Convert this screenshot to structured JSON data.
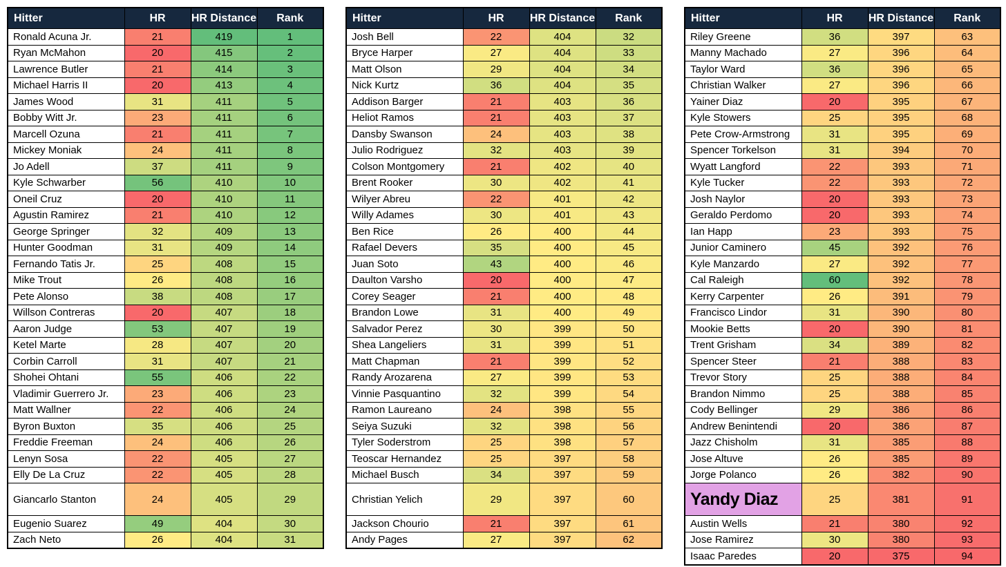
{
  "theme": {
    "page_bg": "#FFFFFF",
    "header_bg": "#16283E",
    "header_text": "#FFFFFF",
    "cell_border": "#000000",
    "name_cell_bg": "#FFFFFF",
    "highlight_bg": "#E2A2E5",
    "scale_red": "#F8696B",
    "scale_yellow": "#FFEB84",
    "scale_green": "#63BE7B"
  },
  "chart_data": {
    "type": "table",
    "columns": {
      "hitter": "Hitter",
      "hr": "HR",
      "distance": "HR Distance",
      "rank": "Rank"
    },
    "row_fields": [
      "hitter",
      "hr",
      "distance",
      "rank"
    ],
    "color_scales": {
      "hr": {
        "min": 20,
        "mid": 26,
        "max": 60,
        "low_color": "red",
        "high_color": "green"
      },
      "distance": {
        "min": 375,
        "mid": 400,
        "max": 419,
        "low_color": "red",
        "high_color": "green"
      },
      "rank": {
        "min": 1,
        "mid": 47.5,
        "max": 94,
        "low_color": "green",
        "high_color": "red"
      }
    },
    "highlighted_hitter": "Yandy Diaz",
    "tall_ranks": [
      29,
      60,
      91
    ],
    "tables": [
      {
        "name": "ranks-1-31",
        "rows": [
          [
            "Ronald Acuna Jr.",
            21,
            419,
            1
          ],
          [
            "Ryan McMahon",
            20,
            415,
            2
          ],
          [
            "Lawrence Butler",
            21,
            414,
            3
          ],
          [
            "Michael Harris II",
            20,
            413,
            4
          ],
          [
            "James Wood",
            31,
            411,
            5
          ],
          [
            "Bobby Witt Jr.",
            23,
            411,
            6
          ],
          [
            "Marcell Ozuna",
            21,
            411,
            7
          ],
          [
            "Mickey Moniak",
            24,
            411,
            8
          ],
          [
            "Jo Adell",
            37,
            411,
            9
          ],
          [
            "Kyle Schwarber",
            56,
            410,
            10
          ],
          [
            "Oneil Cruz",
            20,
            410,
            11
          ],
          [
            "Agustin Ramirez",
            21,
            410,
            12
          ],
          [
            "George Springer",
            32,
            409,
            13
          ],
          [
            "Hunter Goodman",
            31,
            409,
            14
          ],
          [
            "Fernando Tatis Jr.",
            25,
            408,
            15
          ],
          [
            "Mike Trout",
            26,
            408,
            16
          ],
          [
            "Pete Alonso",
            38,
            408,
            17
          ],
          [
            "Willson Contreras",
            20,
            407,
            18
          ],
          [
            "Aaron Judge",
            53,
            407,
            19
          ],
          [
            "Ketel Marte",
            28,
            407,
            20
          ],
          [
            "Corbin Carroll",
            31,
            407,
            21
          ],
          [
            "Shohei Ohtani",
            55,
            406,
            22
          ],
          [
            "Vladimir Guerrero Jr.",
            23,
            406,
            23
          ],
          [
            "Matt Wallner",
            22,
            406,
            24
          ],
          [
            "Byron Buxton",
            35,
            406,
            25
          ],
          [
            "Freddie Freeman",
            24,
            406,
            26
          ],
          [
            "Lenyn Sosa",
            22,
            405,
            27
          ],
          [
            "Elly De La Cruz",
            22,
            405,
            28
          ],
          [
            "Giancarlo Stanton",
            24,
            405,
            29
          ],
          [
            "Eugenio Suarez",
            49,
            404,
            30
          ],
          [
            "Zach Neto",
            26,
            404,
            31
          ]
        ]
      },
      {
        "name": "ranks-32-62",
        "rows": [
          [
            "Josh Bell",
            22,
            404,
            32
          ],
          [
            "Bryce Harper",
            27,
            404,
            33
          ],
          [
            "Matt Olson",
            29,
            404,
            34
          ],
          [
            "Nick Kurtz",
            36,
            404,
            35
          ],
          [
            "Addison Barger",
            21,
            403,
            36
          ],
          [
            "Heliot Ramos",
            21,
            403,
            37
          ],
          [
            "Dansby Swanson",
            24,
            403,
            38
          ],
          [
            "Julio Rodriguez",
            32,
            403,
            39
          ],
          [
            "Colson Montgomery",
            21,
            402,
            40
          ],
          [
            "Brent Rooker",
            30,
            402,
            41
          ],
          [
            "Wilyer Abreu",
            22,
            401,
            42
          ],
          [
            "Willy Adames",
            30,
            401,
            43
          ],
          [
            "Ben Rice",
            26,
            400,
            44
          ],
          [
            "Rafael Devers",
            35,
            400,
            45
          ],
          [
            "Juan Soto",
            43,
            400,
            46
          ],
          [
            "Daulton Varsho",
            20,
            400,
            47
          ],
          [
            "Corey Seager",
            21,
            400,
            48
          ],
          [
            "Brandon Lowe",
            31,
            400,
            49
          ],
          [
            "Salvador Perez",
            30,
            399,
            50
          ],
          [
            "Shea Langeliers",
            31,
            399,
            51
          ],
          [
            "Matt Chapman",
            21,
            399,
            52
          ],
          [
            "Randy Arozarena",
            27,
            399,
            53
          ],
          [
            "Vinnie Pasquantino",
            32,
            399,
            54
          ],
          [
            "Ramon Laureano",
            24,
            398,
            55
          ],
          [
            "Seiya Suzuki",
            32,
            398,
            56
          ],
          [
            "Tyler Soderstrom",
            25,
            398,
            57
          ],
          [
            "Teoscar Hernandez",
            25,
            397,
            58
          ],
          [
            "Michael Busch",
            34,
            397,
            59
          ],
          [
            "Christian Yelich",
            29,
            397,
            60
          ],
          [
            "Jackson Chourio",
            21,
            397,
            61
          ],
          [
            "Andy Pages",
            27,
            397,
            62
          ]
        ]
      },
      {
        "name": "ranks-63-94",
        "rows": [
          [
            "Riley Greene",
            36,
            397,
            63
          ],
          [
            "Manny Machado",
            27,
            396,
            64
          ],
          [
            "Taylor Ward",
            36,
            396,
            65
          ],
          [
            "Christian Walker",
            27,
            396,
            66
          ],
          [
            "Yainer Diaz",
            20,
            395,
            67
          ],
          [
            "Kyle Stowers",
            25,
            395,
            68
          ],
          [
            "Pete Crow-Armstrong",
            31,
            395,
            69
          ],
          [
            "Spencer Torkelson",
            31,
            394,
            70
          ],
          [
            "Wyatt Langford",
            22,
            393,
            71
          ],
          [
            "Kyle Tucker",
            22,
            393,
            72
          ],
          [
            "Josh Naylor",
            20,
            393,
            73
          ],
          [
            "Geraldo Perdomo",
            20,
            393,
            74
          ],
          [
            "Ian Happ",
            23,
            393,
            75
          ],
          [
            "Junior Caminero",
            45,
            392,
            76
          ],
          [
            "Kyle Manzardo",
            27,
            392,
            77
          ],
          [
            "Cal Raleigh",
            60,
            392,
            78
          ],
          [
            "Kerry Carpenter",
            26,
            391,
            79
          ],
          [
            "Francisco Lindor",
            31,
            390,
            80
          ],
          [
            "Mookie Betts",
            20,
            390,
            81
          ],
          [
            "Trent Grisham",
            34,
            389,
            82
          ],
          [
            "Spencer Steer",
            21,
            388,
            83
          ],
          [
            "Trevor Story",
            25,
            388,
            84
          ],
          [
            "Brandon Nimmo",
            25,
            388,
            85
          ],
          [
            "Cody Bellinger",
            29,
            386,
            86
          ],
          [
            "Andrew Benintendi",
            20,
            386,
            87
          ],
          [
            "Jazz Chisholm",
            31,
            385,
            88
          ],
          [
            "Jose Altuve",
            26,
            385,
            89
          ],
          [
            "Jorge Polanco",
            26,
            382,
            90
          ],
          [
            "Yandy Diaz",
            25,
            381,
            91
          ],
          [
            "Austin Wells",
            21,
            380,
            92
          ],
          [
            "Jose Ramirez",
            30,
            380,
            93
          ],
          [
            "Isaac Paredes",
            20,
            375,
            94
          ]
        ]
      }
    ]
  }
}
